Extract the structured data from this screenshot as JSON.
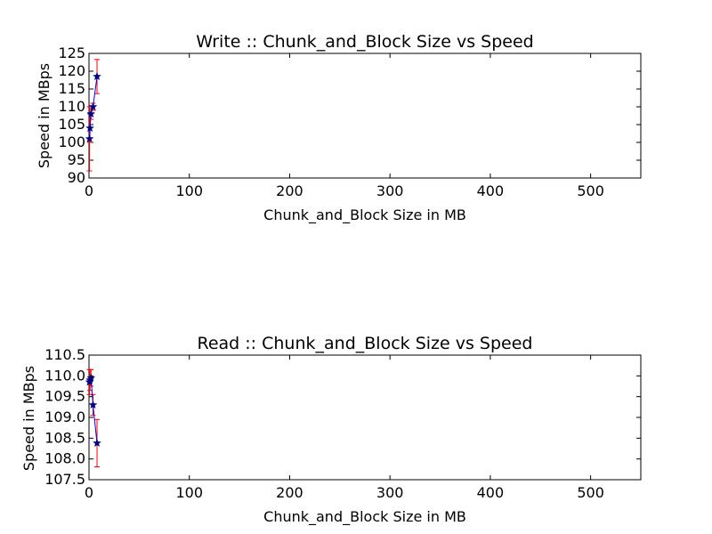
{
  "figure": {
    "background": "#ffffff",
    "line_color": "#0000ff",
    "marker_color": "#000080",
    "errorbar_color": "#ff0000"
  },
  "chart_data": [
    {
      "type": "line",
      "title": "Write :: Chunk_and_Block Size vs Speed",
      "xlabel": "Chunk_and_Block Size in MB",
      "ylabel": "Speed in MBps",
      "xlim": [
        0,
        550
      ],
      "ylim": [
        90,
        125
      ],
      "xticks": [
        0,
        100,
        200,
        300,
        400,
        500
      ],
      "yticks": [
        90,
        95,
        100,
        105,
        110,
        115,
        120,
        125
      ],
      "ytick_labels": [
        "90",
        "95",
        "100",
        "105",
        "110",
        "115",
        "120",
        "125"
      ],
      "grid": false,
      "marker": "star",
      "series": [
        {
          "x": [
            0.5,
            1,
            2,
            4,
            8
          ],
          "y": [
            101,
            104,
            108,
            110,
            118.5
          ],
          "yerr": [
            9,
            4,
            1.5,
            1,
            4.8
          ]
        }
      ]
    },
    {
      "type": "line",
      "title": "Read :: Chunk_and_Block Size vs Speed",
      "xlabel": "Chunk_and_Block Size in MB",
      "ylabel": "Speed in MBps",
      "xlim": [
        0,
        550
      ],
      "ylim": [
        107.5,
        110.5
      ],
      "xticks": [
        0,
        100,
        200,
        300,
        400,
        500
      ],
      "yticks": [
        107.5,
        108,
        108.5,
        109,
        109.5,
        110,
        110.5
      ],
      "ytick_labels": [
        "107.5",
        "108.0",
        "108.5",
        "109.0",
        "109.5",
        "110.0",
        "110.5"
      ],
      "grid": false,
      "marker": "star",
      "series": [
        {
          "x": [
            0.5,
            1,
            2,
            4,
            8
          ],
          "y": [
            109.85,
            109.9,
            109.95,
            109.3,
            108.38
          ],
          "yerr": [
            0.3,
            0.25,
            0.2,
            0.25,
            0.57
          ]
        }
      ]
    }
  ]
}
